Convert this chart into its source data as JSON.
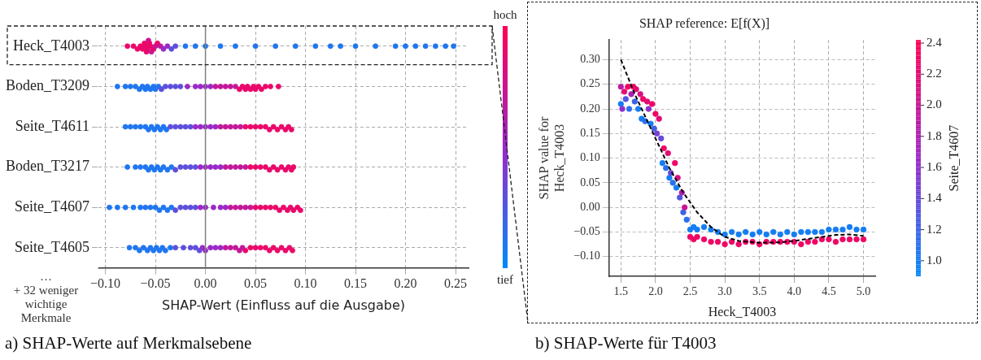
{
  "chart_data": [
    {
      "type": "scatter",
      "orientation": "horizontal",
      "xlabel": "SHAP-Wert (Einfluss auf die Ausgabe)",
      "categories": [
        "Heck_T4003",
        "Boden_T3209",
        "Seite_T4611",
        "Boden_T3217",
        "Seite_T4607",
        "Seite_T4605"
      ],
      "xlim": [
        -0.107,
        0.263
      ],
      "xticks": [
        {
          "value": -0.1,
          "label": "−0.10"
        },
        {
          "value": -0.05,
          "label": "−0.05"
        },
        {
          "value": 0,
          "label": "0.00"
        },
        {
          "value": 0.05,
          "label": "0.05"
        },
        {
          "value": 0.1,
          "label": "0.10"
        },
        {
          "value": 0.15,
          "label": "0.15"
        },
        {
          "value": 0.2,
          "label": "0.20"
        },
        {
          "value": 0.25,
          "label": "0.25"
        }
      ],
      "grid": true,
      "marker": "circle",
      "ref_lines": [
        {
          "axis": "x",
          "value": 0,
          "color": "#808080"
        }
      ],
      "annotations": [
        "…",
        "+ 32 weniger wichtige Merkmale",
        "hoch",
        "tief",
        "a) SHAP-Werte auf Merkmalsebene"
      ],
      "series": [
        {
          "x": [
            "Heck_T4003",
            "Heck_T4003",
            "Heck_T4003",
            "Heck_T4003",
            "Heck_T4003",
            "Heck_T4003",
            "Heck_T4003",
            "Heck_T4003",
            "Heck_T4003",
            "Heck_T4003",
            "Heck_T4003",
            "Heck_T4003",
            "Heck_T4003",
            "Heck_T4003",
            "Heck_T4003",
            "Heck_T4003",
            "Heck_T4003",
            "Heck_T4003",
            "Heck_T4003",
            "Heck_T4003",
            "Heck_T4003",
            "Heck_T4003",
            "Heck_T4003",
            "Heck_T4003",
            "Heck_T4003",
            "Heck_T4003",
            "Heck_T4003",
            "Heck_T4003",
            "Heck_T4003",
            "Heck_T4003",
            "Heck_T4003",
            "Heck_T4003",
            "Heck_T4003",
            "Heck_T4003",
            "Heck_T4003",
            "Heck_T4003",
            "Heck_T4003",
            "Heck_T4003",
            "Heck_T4003",
            "Heck_T4003",
            "Heck_T4003"
          ],
          "values": [
            -0.078,
            -0.072,
            -0.068,
            -0.065,
            -0.063,
            -0.061,
            -0.06,
            -0.059,
            -0.058,
            -0.057,
            -0.056,
            -0.055,
            -0.054,
            -0.052,
            -0.05,
            -0.048,
            -0.045,
            -0.042,
            -0.038,
            -0.034,
            -0.03,
            -0.02,
            -0.01,
            0.0,
            0.015,
            0.03,
            0.05,
            0.07,
            0.09,
            0.11,
            0.125,
            0.135,
            0.15,
            0.17,
            0.19,
            0.2,
            0.21,
            0.22,
            0.23,
            0.24,
            0.248
          ],
          "colors": [
            "#eb086a",
            "#eb086a",
            "#eb086a",
            "#eb086a",
            "#eb086a",
            "#eb086a",
            "#eb086a",
            "#eb086a",
            "#eb086a",
            "#c31899",
            "#eb086a",
            "#eb086a",
            "#c31899",
            "#eb086a",
            "#c31899",
            "#eb086a",
            "#c31899",
            "#9b28c8",
            "#9b28c8",
            "#5d4fdc",
            "#5d4fdc",
            "#1f76f0",
            "#1f76f0",
            "#1f76f0",
            "#1f76f0",
            "#1f76f0",
            "#1f76f0",
            "#1f76f0",
            "#1f76f0",
            "#1f76f0",
            "#1f76f0",
            "#1f76f0",
            "#1f76f0",
            "#1f76f0",
            "#1f76f0",
            "#1f76f0",
            "#1f76f0",
            "#1f76f0",
            "#1f76f0",
            "#1f76f0",
            "#1f76f0"
          ]
        },
        {
          "x": [
            "Boden_T3209",
            "Boden_T3209",
            "Boden_T3209",
            "Boden_T3209",
            "Boden_T3209",
            "Boden_T3209",
            "Boden_T3209",
            "Boden_T3209",
            "Boden_T3209",
            "Boden_T3209",
            "Boden_T3209",
            "Boden_T3209",
            "Boden_T3209",
            "Boden_T3209",
            "Boden_T3209",
            "Boden_T3209",
            "Boden_T3209",
            "Boden_T3209",
            "Boden_T3209",
            "Boden_T3209",
            "Boden_T3209",
            "Boden_T3209",
            "Boden_T3209",
            "Boden_T3209",
            "Boden_T3209",
            "Boden_T3209",
            "Boden_T3209",
            "Boden_T3209",
            "Boden_T3209",
            "Boden_T3209",
            "Boden_T3209",
            "Boden_T3209",
            "Boden_T3209",
            "Boden_T3209",
            "Boden_T3209",
            "Boden_T3209",
            "Boden_T3209",
            "Boden_T3209",
            "Boden_T3209"
          ],
          "values": [
            -0.088,
            -0.08,
            -0.075,
            -0.07,
            -0.066,
            -0.063,
            -0.06,
            -0.058,
            -0.055,
            -0.052,
            -0.05,
            -0.047,
            -0.044,
            -0.04,
            -0.035,
            -0.03,
            -0.025,
            -0.018,
            -0.01,
            -0.005,
            0.0,
            0.005,
            0.01,
            0.015,
            0.02,
            0.025,
            0.03,
            0.034,
            0.037,
            0.04,
            0.042,
            0.045,
            0.048,
            0.05,
            0.053,
            0.056,
            0.06,
            0.065,
            0.073
          ],
          "colors": [
            "#1f76f0",
            "#1f76f0",
            "#1f76f0",
            "#1f76f0",
            "#1f76f0",
            "#1f76f0",
            "#1f76f0",
            "#1f76f0",
            "#1f76f0",
            "#1f76f0",
            "#1f76f0",
            "#1f76f0",
            "#5d4fdc",
            "#5d4fdc",
            "#5d4fdc",
            "#5d4fdc",
            "#5d4fdc",
            "#9b28c8",
            "#9b28c8",
            "#9b28c8",
            "#9b28c8",
            "#9b28c8",
            "#c31899",
            "#c31899",
            "#c31899",
            "#c31899",
            "#c31899",
            "#eb086a",
            "#eb086a",
            "#eb086a",
            "#eb086a",
            "#eb086a",
            "#eb086a",
            "#eb086a",
            "#eb086a",
            "#eb086a",
            "#eb086a",
            "#eb086a",
            "#eb086a"
          ]
        },
        {
          "x": [
            "Seite_T4611",
            "Seite_T4611",
            "Seite_T4611",
            "Seite_T4611",
            "Seite_T4611",
            "Seite_T4611",
            "Seite_T4611",
            "Seite_T4611",
            "Seite_T4611",
            "Seite_T4611",
            "Seite_T4611",
            "Seite_T4611",
            "Seite_T4611",
            "Seite_T4611",
            "Seite_T4611",
            "Seite_T4611",
            "Seite_T4611",
            "Seite_T4611",
            "Seite_T4611",
            "Seite_T4611",
            "Seite_T4611",
            "Seite_T4611",
            "Seite_T4611",
            "Seite_T4611",
            "Seite_T4611",
            "Seite_T4611",
            "Seite_T4611",
            "Seite_T4611",
            "Seite_T4611",
            "Seite_T4611",
            "Seite_T4611",
            "Seite_T4611",
            "Seite_T4611",
            "Seite_T4611",
            "Seite_T4611",
            "Seite_T4611",
            "Seite_T4611",
            "Seite_T4611",
            "Seite_T4611"
          ],
          "values": [
            -0.08,
            -0.075,
            -0.07,
            -0.065,
            -0.06,
            -0.057,
            -0.054,
            -0.051,
            -0.048,
            -0.045,
            -0.042,
            -0.039,
            -0.035,
            -0.03,
            -0.025,
            -0.02,
            -0.015,
            -0.01,
            -0.005,
            0.0,
            0.005,
            0.01,
            0.015,
            0.02,
            0.025,
            0.03,
            0.035,
            0.04,
            0.045,
            0.05,
            0.055,
            0.06,
            0.064,
            0.068,
            0.072,
            0.076,
            0.08,
            0.083,
            0.086
          ],
          "colors": [
            "#1f76f0",
            "#1f76f0",
            "#1f76f0",
            "#1f76f0",
            "#1f76f0",
            "#1f76f0",
            "#1f76f0",
            "#1f76f0",
            "#1f76f0",
            "#1f76f0",
            "#1f76f0",
            "#1f76f0",
            "#5d4fdc",
            "#5d4fdc",
            "#5d4fdc",
            "#5d4fdc",
            "#5d4fdc",
            "#9b28c8",
            "#9b28c8",
            "#9b28c8",
            "#9b28c8",
            "#9b28c8",
            "#c31899",
            "#c31899",
            "#c31899",
            "#c31899",
            "#c31899",
            "#eb086a",
            "#eb086a",
            "#eb086a",
            "#eb086a",
            "#eb086a",
            "#eb086a",
            "#eb086a",
            "#eb086a",
            "#eb086a",
            "#eb086a",
            "#eb086a",
            "#eb086a"
          ]
        },
        {
          "x": [
            "Boden_T3217",
            "Boden_T3217",
            "Boden_T3217",
            "Boden_T3217",
            "Boden_T3217",
            "Boden_T3217",
            "Boden_T3217",
            "Boden_T3217",
            "Boden_T3217",
            "Boden_T3217",
            "Boden_T3217",
            "Boden_T3217",
            "Boden_T3217",
            "Boden_T3217",
            "Boden_T3217",
            "Boden_T3217",
            "Boden_T3217",
            "Boden_T3217",
            "Boden_T3217",
            "Boden_T3217",
            "Boden_T3217",
            "Boden_T3217",
            "Boden_T3217",
            "Boden_T3217",
            "Boden_T3217",
            "Boden_T3217",
            "Boden_T3217",
            "Boden_T3217",
            "Boden_T3217",
            "Boden_T3217",
            "Boden_T3217",
            "Boden_T3217",
            "Boden_T3217",
            "Boden_T3217",
            "Boden_T3217",
            "Boden_T3217",
            "Boden_T3217",
            "Boden_T3217",
            "Boden_T3217"
          ],
          "values": [
            -0.078,
            -0.07,
            -0.065,
            -0.06,
            -0.057,
            -0.054,
            -0.051,
            -0.048,
            -0.045,
            -0.042,
            -0.038,
            -0.034,
            -0.03,
            -0.025,
            -0.02,
            -0.015,
            -0.01,
            -0.005,
            0.0,
            0.005,
            0.01,
            0.015,
            0.02,
            0.025,
            0.03,
            0.035,
            0.04,
            0.045,
            0.05,
            0.055,
            0.06,
            0.064,
            0.068,
            0.072,
            0.076,
            0.08,
            0.083,
            0.086,
            0.088
          ],
          "colors": [
            "#1f76f0",
            "#1f76f0",
            "#1f76f0",
            "#1f76f0",
            "#1f76f0",
            "#1f76f0",
            "#1f76f0",
            "#1f76f0",
            "#1f76f0",
            "#1f76f0",
            "#1f76f0",
            "#1f76f0",
            "#5d4fdc",
            "#5d4fdc",
            "#5d4fdc",
            "#5d4fdc",
            "#5d4fdc",
            "#9b28c8",
            "#9b28c8",
            "#9b28c8",
            "#9b28c8",
            "#9b28c8",
            "#c31899",
            "#c31899",
            "#c31899",
            "#c31899",
            "#c31899",
            "#eb086a",
            "#eb086a",
            "#eb086a",
            "#eb086a",
            "#eb086a",
            "#eb086a",
            "#eb086a",
            "#eb086a",
            "#eb086a",
            "#eb086a",
            "#eb086a",
            "#eb086a"
          ]
        },
        {
          "x": [
            "Seite_T4607",
            "Seite_T4607",
            "Seite_T4607",
            "Seite_T4607",
            "Seite_T4607",
            "Seite_T4607",
            "Seite_T4607",
            "Seite_T4607",
            "Seite_T4607",
            "Seite_T4607",
            "Seite_T4607",
            "Seite_T4607",
            "Seite_T4607",
            "Seite_T4607",
            "Seite_T4607",
            "Seite_T4607",
            "Seite_T4607",
            "Seite_T4607",
            "Seite_T4607",
            "Seite_T4607",
            "Seite_T4607",
            "Seite_T4607",
            "Seite_T4607",
            "Seite_T4607",
            "Seite_T4607",
            "Seite_T4607",
            "Seite_T4607",
            "Seite_T4607",
            "Seite_T4607",
            "Seite_T4607",
            "Seite_T4607",
            "Seite_T4607",
            "Seite_T4607",
            "Seite_T4607",
            "Seite_T4607",
            "Seite_T4607",
            "Seite_T4607",
            "Seite_T4607",
            "Seite_T4607"
          ],
          "values": [
            -0.096,
            -0.088,
            -0.08,
            -0.072,
            -0.065,
            -0.06,
            -0.055,
            -0.05,
            -0.046,
            -0.042,
            -0.038,
            -0.034,
            -0.03,
            -0.025,
            -0.02,
            -0.015,
            -0.01,
            -0.005,
            0.0,
            0.008,
            0.015,
            0.02,
            0.025,
            0.03,
            0.035,
            0.04,
            0.045,
            0.05,
            0.055,
            0.06,
            0.065,
            0.07,
            0.074,
            0.078,
            0.082,
            0.085,
            0.088,
            0.092,
            0.095
          ],
          "colors": [
            "#1f76f0",
            "#1f76f0",
            "#1f76f0",
            "#1f76f0",
            "#1f76f0",
            "#1f76f0",
            "#1f76f0",
            "#1f76f0",
            "#1f76f0",
            "#1f76f0",
            "#1f76f0",
            "#1f76f0",
            "#5d4fdc",
            "#5d4fdc",
            "#5d4fdc",
            "#5d4fdc",
            "#5d4fdc",
            "#9b28c8",
            "#9b28c8",
            "#9b28c8",
            "#9b28c8",
            "#9b28c8",
            "#c31899",
            "#c31899",
            "#c31899",
            "#c31899",
            "#c31899",
            "#eb086a",
            "#eb086a",
            "#eb086a",
            "#eb086a",
            "#eb086a",
            "#eb086a",
            "#eb086a",
            "#eb086a",
            "#eb086a",
            "#eb086a",
            "#eb086a",
            "#eb086a"
          ]
        },
        {
          "x": [
            "Seite_T4605",
            "Seite_T4605",
            "Seite_T4605",
            "Seite_T4605",
            "Seite_T4605",
            "Seite_T4605",
            "Seite_T4605",
            "Seite_T4605",
            "Seite_T4605",
            "Seite_T4605",
            "Seite_T4605",
            "Seite_T4605",
            "Seite_T4605",
            "Seite_T4605",
            "Seite_T4605",
            "Seite_T4605",
            "Seite_T4605",
            "Seite_T4605",
            "Seite_T4605",
            "Seite_T4605",
            "Seite_T4605",
            "Seite_T4605",
            "Seite_T4605",
            "Seite_T4605",
            "Seite_T4605",
            "Seite_T4605",
            "Seite_T4605",
            "Seite_T4605",
            "Seite_T4605",
            "Seite_T4605",
            "Seite_T4605",
            "Seite_T4605",
            "Seite_T4605",
            "Seite_T4605",
            "Seite_T4605",
            "Seite_T4605",
            "Seite_T4605",
            "Seite_T4605",
            "Seite_T4605"
          ],
          "values": [
            -0.076,
            -0.07,
            -0.066,
            -0.062,
            -0.058,
            -0.055,
            -0.052,
            -0.049,
            -0.046,
            -0.043,
            -0.04,
            -0.035,
            -0.03,
            -0.022,
            -0.015,
            -0.01,
            -0.006,
            -0.003,
            0.0,
            0.005,
            0.01,
            0.015,
            0.02,
            0.025,
            0.03,
            0.034,
            0.037,
            0.04,
            0.045,
            0.05,
            0.055,
            0.06,
            0.064,
            0.068,
            0.072,
            0.076,
            0.08,
            0.084,
            0.087
          ],
          "colors": [
            "#1f76f0",
            "#1f76f0",
            "#1f76f0",
            "#1f76f0",
            "#1f76f0",
            "#1f76f0",
            "#1f76f0",
            "#1f76f0",
            "#1f76f0",
            "#1f76f0",
            "#1f76f0",
            "#1f76f0",
            "#5d4fdc",
            "#5d4fdc",
            "#5d4fdc",
            "#5d4fdc",
            "#5d4fdc",
            "#9b28c8",
            "#9b28c8",
            "#9b28c8",
            "#9b28c8",
            "#9b28c8",
            "#c31899",
            "#c31899",
            "#c31899",
            "#c31899",
            "#c31899",
            "#eb086a",
            "#eb086a",
            "#eb086a",
            "#eb086a",
            "#eb086a",
            "#eb086a",
            "#eb086a",
            "#eb086a",
            "#eb086a",
            "#eb086a",
            "#eb086a",
            "#eb086a"
          ]
        }
      ]
    },
    {
      "type": "scatter",
      "title": "SHAP reference: E[f(X)]",
      "xlabel": "Heck_T4003",
      "ylabel": "SHAP value for\nHeck_T4003",
      "clabel": "Seite_T4607",
      "xlim": [
        1.33,
        5.17
      ],
      "xticks": [
        1.5,
        {
          "value": 2,
          "label": "2.0"
        },
        2.5,
        {
          "value": 3,
          "label": "3.0"
        },
        3.5,
        {
          "value": 4,
          "label": "4.0"
        },
        4.5,
        {
          "value": 5,
          "label": "5.0"
        }
      ],
      "ylim": [
        -0.14,
        0.34
      ],
      "yticks": [
        {
          "value": -0.1,
          "label": "−0.10"
        },
        {
          "value": -0.05,
          "label": "−0.05"
        },
        {
          "value": 0,
          "label": "0.00"
        },
        {
          "value": 0.05,
          "label": "0.05"
        },
        {
          "value": 0.1,
          "label": "0.10"
        },
        {
          "value": 0.15,
          "label": "0.15"
        },
        {
          "value": 0.2,
          "label": "0.20"
        },
        {
          "value": 0.25,
          "label": "0.25"
        },
        {
          "value": 0.3,
          "label": "0.30"
        }
      ],
      "clim": [
        0.9,
        2.42
      ],
      "cticks": [
        {
          "value": 1,
          "label": "1.0"
        },
        {
          "value": 1.2,
          "label": "1.2"
        },
        {
          "value": 1.4,
          "label": "1.4"
        },
        {
          "value": 1.6,
          "label": "1.6"
        },
        {
          "value": 1.8,
          "label": "1.8"
        },
        {
          "value": 2,
          "label": "2.0"
        },
        {
          "value": 2.2,
          "label": "2.2"
        },
        {
          "value": 2.4,
          "label": "2.4"
        }
      ],
      "grid": true,
      "marker": "circle",
      "annotations": [
        "b) SHAP-Werte für T4003"
      ],
      "series": [
        {
          "x": [
            1.5,
            1.5,
            1.52,
            1.55,
            1.57,
            1.6,
            1.62,
            1.65,
            1.68,
            1.7,
            1.72,
            1.75,
            1.78,
            1.8,
            1.82,
            1.85,
            1.88,
            1.9,
            1.93,
            1.95,
            1.98,
            2.0,
            2.02,
            2.05,
            2.08,
            2.1,
            2.12,
            2.15,
            2.18,
            2.2,
            2.22,
            2.25,
            2.28,
            2.3,
            2.32,
            2.35,
            2.38,
            2.4,
            2.42,
            2.45,
            2.5,
            2.5,
            2.55,
            2.55,
            2.6,
            2.6,
            2.7,
            2.7,
            2.8,
            2.8,
            2.9,
            2.9,
            3.0,
            3.0,
            3.1,
            3.1,
            3.2,
            3.2,
            3.3,
            3.3,
            3.4,
            3.4,
            3.5,
            3.5,
            3.6,
            3.6,
            3.7,
            3.7,
            3.8,
            3.8,
            3.9,
            3.9,
            4.0,
            4.0,
            4.1,
            4.1,
            4.2,
            4.2,
            4.3,
            4.3,
            4.4,
            4.4,
            4.5,
            4.5,
            4.6,
            4.6,
            4.7,
            4.7,
            4.8,
            4.8,
            4.9,
            4.9,
            5.0,
            5.0
          ],
          "values": [
            0.245,
            0.21,
            0.2,
            0.235,
            0.22,
            0.245,
            0.2,
            0.23,
            0.245,
            0.215,
            0.24,
            0.2,
            0.23,
            0.18,
            0.22,
            0.175,
            0.215,
            0.2,
            0.17,
            0.21,
            0.16,
            0.19,
            0.15,
            0.18,
            0.14,
            0.09,
            0.12,
            0.08,
            0.11,
            0.06,
            0.07,
            0.05,
            0.09,
            0.04,
            0.06,
            0.02,
            0.03,
            -0.01,
            0.0,
            -0.025,
            -0.045,
            -0.06,
            -0.04,
            -0.065,
            -0.045,
            -0.06,
            -0.04,
            -0.065,
            -0.045,
            -0.07,
            -0.05,
            -0.07,
            -0.055,
            -0.075,
            -0.05,
            -0.07,
            -0.055,
            -0.075,
            -0.05,
            -0.07,
            -0.055,
            -0.07,
            -0.05,
            -0.075,
            -0.055,
            -0.07,
            -0.05,
            -0.07,
            -0.055,
            -0.07,
            -0.05,
            -0.07,
            -0.055,
            -0.07,
            -0.05,
            -0.075,
            -0.05,
            -0.07,
            -0.05,
            -0.07,
            -0.05,
            -0.065,
            -0.045,
            -0.065,
            -0.045,
            -0.07,
            -0.045,
            -0.065,
            -0.04,
            -0.065,
            -0.045,
            -0.065,
            -0.045,
            -0.065
          ],
          "colors": [
            "#bb1ba3",
            "#147df3",
            "#8f30cc",
            "#e20c74",
            "#5256e0",
            "#ef0665",
            "#2970ed",
            "#ad21b2",
            "#ef0665",
            "#3d63e6",
            "#e20c74",
            "#147df3",
            "#d51184",
            "#147df3",
            "#ef0665",
            "#2970ed",
            "#e20c74",
            "#8f30cc",
            "#147df3",
            "#ef0665",
            "#3d63e6",
            "#ef0665",
            "#7a3dd3",
            "#e20c74",
            "#664ad9",
            "#147df3",
            "#ef0665",
            "#2970ed",
            "#e20c74",
            "#147df3",
            "#664ad9",
            "#2970ed",
            "#ef0665",
            "#147df3",
            "#d51184",
            "#5256e0",
            "#ad21b2",
            "#3d63e6",
            "#c81693",
            "#2970ed",
            "#147df3",
            "#ef0665",
            "#147df3",
            "#ef0665",
            "#147df3",
            "#ef0665",
            "#147df3",
            "#ef0665",
            "#147df3",
            "#ef0665",
            "#147df3",
            "#ef0665",
            "#147df3",
            "#ef0665",
            "#147df3",
            "#ef0665",
            "#147df3",
            "#ef0665",
            "#147df3",
            "#ef0665",
            "#147df3",
            "#ef0665",
            "#147df3",
            "#ef0665",
            "#147df3",
            "#ef0665",
            "#147df3",
            "#ef0665",
            "#147df3",
            "#ef0665",
            "#147df3",
            "#ef0665",
            "#147df3",
            "#ef0665",
            "#147df3",
            "#ef0665",
            "#147df3",
            "#ef0665",
            "#147df3",
            "#ef0665",
            "#147df3",
            "#ef0665",
            "#147df3",
            "#ef0665",
            "#147df3",
            "#ef0665",
            "#147df3",
            "#ef0665",
            "#147df3",
            "#ef0665",
            "#147df3",
            "#ef0665",
            "#147df3",
            "#ef0665"
          ],
          "cvalues": [
            1.9,
            1.0,
            1.6,
            2.2,
            1.3,
            2.3,
            1.1,
            1.8,
            2.3,
            1.2,
            2.2,
            1.0,
            2.1,
            1.0,
            2.3,
            1.1,
            2.2,
            1.6,
            1.0,
            2.3,
            1.2,
            2.3,
            1.5,
            2.2,
            1.4,
            1.0,
            2.3,
            1.1,
            2.2,
            1.0,
            1.4,
            1.1,
            2.3,
            1.0,
            2.1,
            1.3,
            1.8,
            1.2,
            2.0,
            1.1,
            1.0,
            2.3,
            1.0,
            2.3,
            1.0,
            2.3,
            1.0,
            2.3,
            1.0,
            2.3,
            1.0,
            2.3,
            1.0,
            2.3,
            1.0,
            2.3,
            1.0,
            2.3,
            1.0,
            2.3,
            1.0,
            2.3,
            1.0,
            2.3,
            1.0,
            2.3,
            1.0,
            2.3,
            1.0,
            2.3,
            1.0,
            2.3,
            1.0,
            2.3,
            1.0,
            2.3,
            1.0,
            2.3,
            1.0,
            2.3,
            1.0,
            2.3,
            1.0,
            2.3,
            1.0,
            2.3,
            1.0,
            2.3,
            1.0,
            2.3,
            1.0,
            2.3,
            1.0,
            2.3
          ]
        },
        {
          "type": "line",
          "color": "#000000",
          "line_style": "dashed",
          "marker": "none",
          "x": [
            1.5,
            1.6,
            1.7,
            1.8,
            1.9,
            2.0,
            2.1,
            2.2,
            2.3,
            2.4,
            2.5,
            2.6,
            2.8,
            3.0,
            3.2,
            3.5,
            3.8,
            4.0,
            4.3,
            4.6,
            4.8,
            5.0
          ],
          "values": [
            0.3,
            0.265,
            0.23,
            0.2,
            0.17,
            0.14,
            0.11,
            0.08,
            0.055,
            0.03,
            0.01,
            -0.01,
            -0.04,
            -0.06,
            -0.068,
            -0.072,
            -0.071,
            -0.068,
            -0.062,
            -0.056,
            -0.055,
            -0.058
          ]
        }
      ]
    }
  ]
}
